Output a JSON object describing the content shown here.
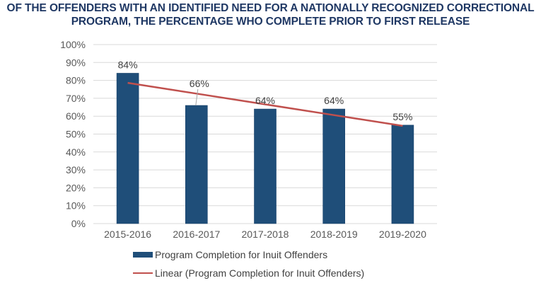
{
  "chart_data": {
    "type": "bar",
    "title_lines": [
      "OF THE OFFENDERS WITH AN IDENTIFIED NEED FOR A NATIONALLY RECOGNIZED CORRECTIONAL",
      "PROGRAM, THE PERCENTAGE WHO COMPLETE PRIOR TO FIRST RELEASE"
    ],
    "categories": [
      "2015-2016",
      "2016-2017",
      "2017-2018",
      "2018-2019",
      "2019-2020"
    ],
    "series": [
      {
        "name": "Program Completion for Inuit Offenders",
        "kind": "bar",
        "color": "#1f4e79",
        "values": [
          84,
          66,
          64,
          64,
          55
        ],
        "data_labels": [
          "84%",
          "66%",
          "64%",
          "64%",
          "55%"
        ]
      },
      {
        "name": "Linear (Program Completion for Inuit Offenders)",
        "kind": "trendline",
        "color": "#c0504d",
        "values": [
          78.6,
          72.6,
          66.6,
          60.6,
          54.6
        ]
      }
    ],
    "xlabel": "",
    "ylabel": "",
    "ylim": [
      0,
      100
    ],
    "yticks": [
      "0%",
      "10%",
      "20%",
      "30%",
      "40%",
      "50%",
      "60%",
      "70%",
      "80%",
      "90%",
      "100%"
    ],
    "grid": true,
    "legend_position": "bottom"
  }
}
